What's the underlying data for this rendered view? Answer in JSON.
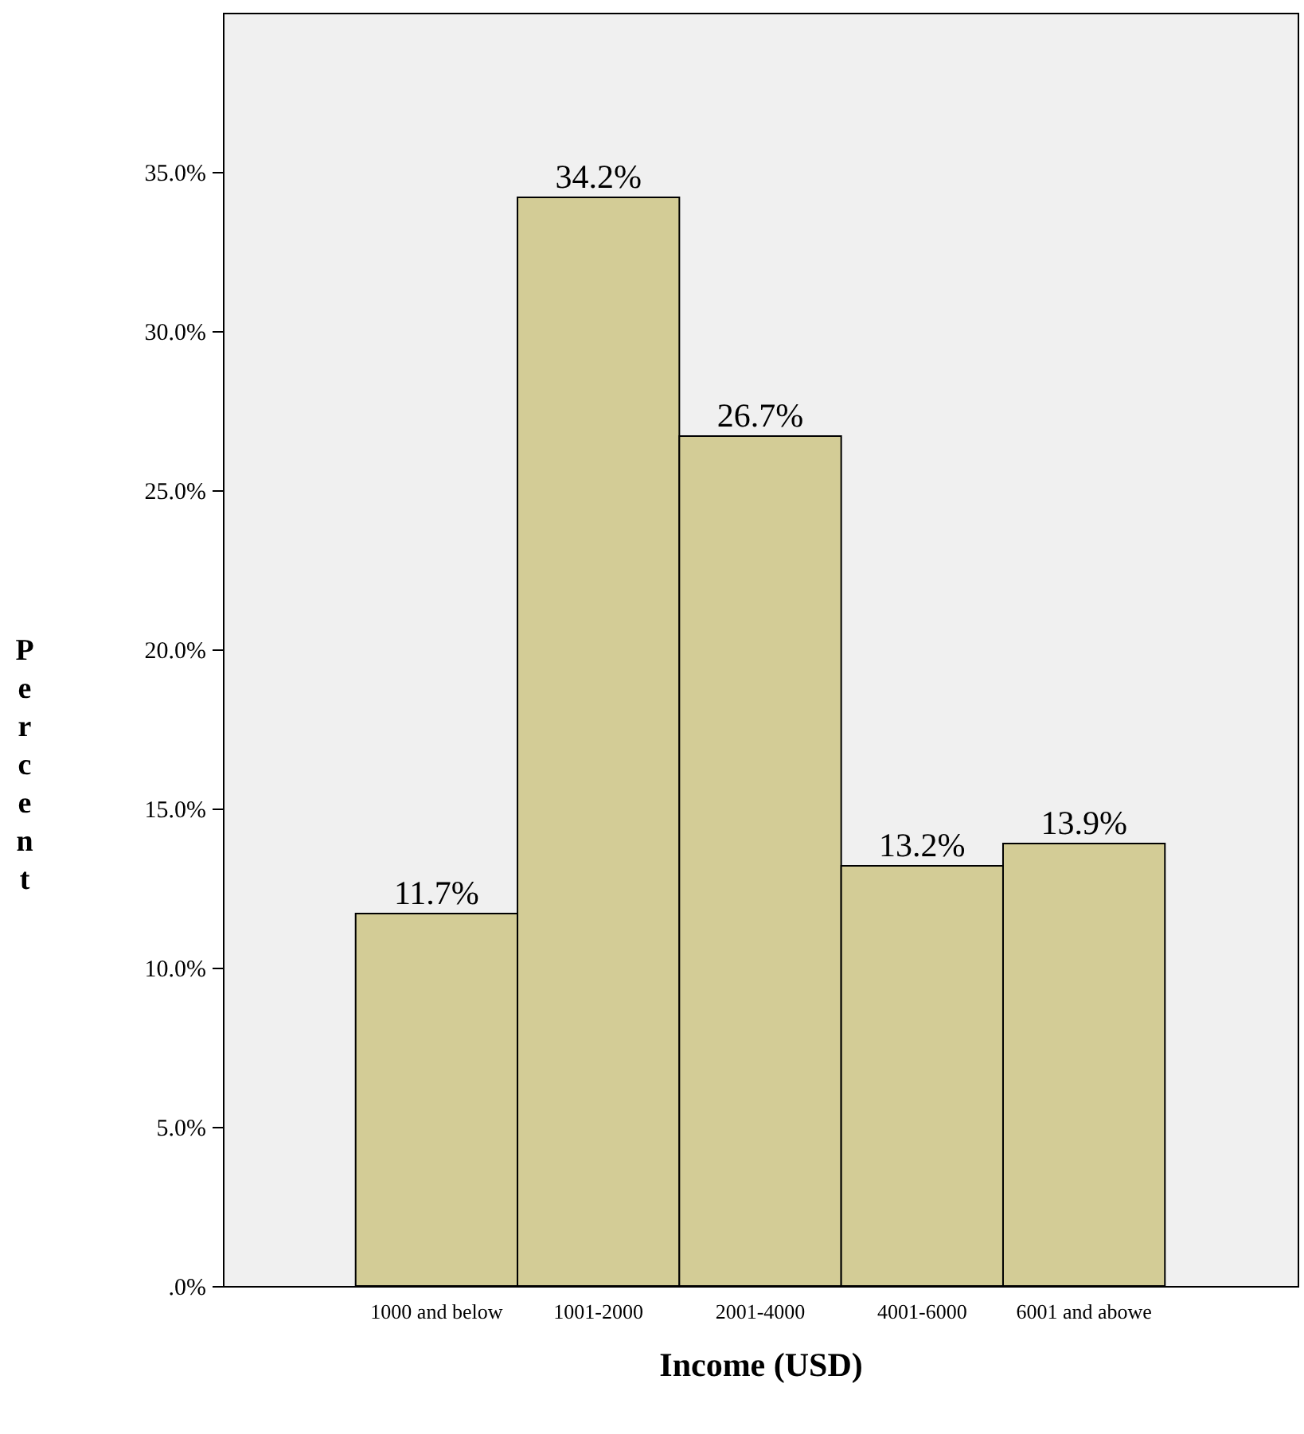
{
  "chart_data": {
    "type": "bar",
    "xlabel": "Income (USD)",
    "ylabel": "Percent",
    "categories": [
      "1000 and below",
      "1001-2000",
      "2001-4000",
      "4001-6000",
      "6001 and abowe"
    ],
    "values": [
      11.7,
      34.2,
      26.7,
      13.2,
      13.9
    ],
    "color": "#d3cc96",
    "data_labels": true,
    "value_labels": [
      "11.7%",
      "34.2%",
      "26.7%",
      "13.2%",
      "13.9%"
    ],
    "ylim": [
      0,
      40
    ],
    "yticks": [
      {
        "value": 0,
        "label": ".0%"
      },
      {
        "value": 5,
        "label": "5.0%"
      },
      {
        "value": 10,
        "label": "10.0%"
      },
      {
        "value": 15,
        "label": "15.0%"
      },
      {
        "value": 20,
        "label": "20.0%"
      },
      {
        "value": 25,
        "label": "25.0%"
      },
      {
        "value": 30,
        "label": "30.0%"
      },
      {
        "value": 35,
        "label": "35.0%"
      }
    ],
    "grid": false
  }
}
